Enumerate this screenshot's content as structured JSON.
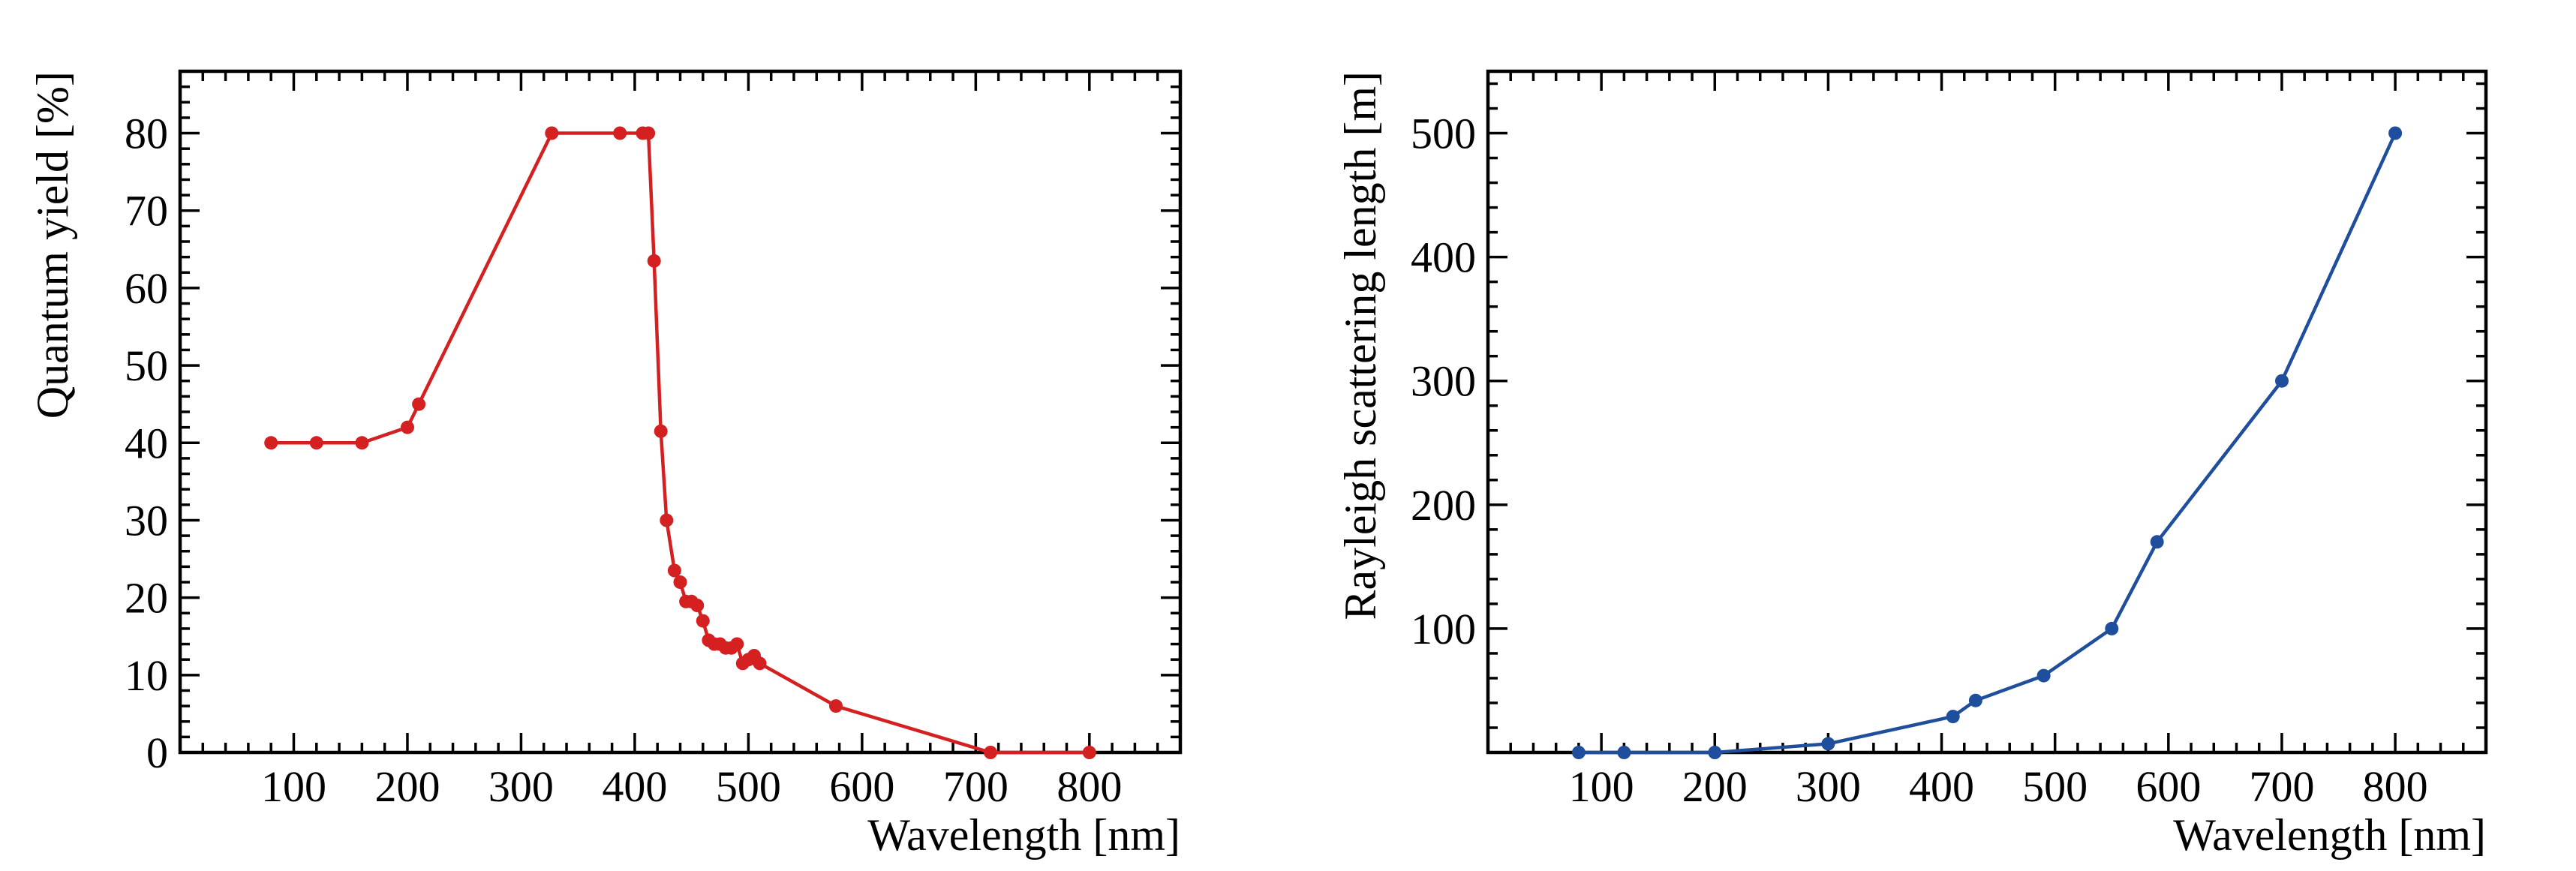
{
  "chart_data": [
    {
      "id": "quantum-yield",
      "type": "line",
      "title": "",
      "xlabel": "Wavelength [nm]",
      "ylabel": "Quantum yield [%]",
      "xlim": [
        0,
        880
      ],
      "ylim": [
        0,
        88
      ],
      "xticks": [
        100,
        200,
        300,
        400,
        500,
        600,
        700,
        800
      ],
      "yticks": [
        0,
        10,
        20,
        30,
        40,
        50,
        60,
        70,
        80
      ],
      "xminor": 20,
      "yminor": 2,
      "color": "#d42020",
      "grid": false,
      "legend": "none",
      "series": [
        {
          "name": "Quantum yield",
          "x": [
            80,
            120,
            160,
            200,
            210,
            327,
            387,
            407,
            412,
            417,
            423,
            428,
            435,
            440,
            445,
            450,
            455,
            460,
            465,
            470,
            475,
            480,
            485,
            490,
            495,
            500,
            505,
            510,
            577,
            713,
            800
          ],
          "y": [
            40,
            40,
            40,
            42,
            45,
            80,
            80,
            80,
            80,
            63.5,
            41.5,
            30,
            23.5,
            22,
            19.5,
            19.5,
            19,
            17,
            14.5,
            14,
            14,
            13.5,
            13.5,
            14,
            11.5,
            12,
            12.5,
            11.5,
            6,
            0,
            0
          ]
        }
      ]
    },
    {
      "id": "rayleigh-length",
      "type": "line",
      "title": "",
      "xlabel": "Wavelength [nm]",
      "ylabel": "Rayleigh scattering length [m]",
      "xlim": [
        0,
        880
      ],
      "ylim": [
        0,
        550
      ],
      "xticks": [
        100,
        200,
        300,
        400,
        500,
        600,
        700,
        800
      ],
      "yticks": [
        100,
        200,
        300,
        400,
        500
      ],
      "xminor": 20,
      "yminor": 20,
      "color": "#1f4e9c",
      "grid": false,
      "legend": "none",
      "series": [
        {
          "name": "Rayleigh scattering length",
          "x": [
            80,
            120,
            200,
            300,
            410,
            430,
            490,
            550,
            590,
            700,
            800
          ],
          "y": [
            0,
            0,
            0,
            7,
            29,
            42,
            62,
            100,
            170,
            300,
            500
          ]
        }
      ]
    }
  ]
}
